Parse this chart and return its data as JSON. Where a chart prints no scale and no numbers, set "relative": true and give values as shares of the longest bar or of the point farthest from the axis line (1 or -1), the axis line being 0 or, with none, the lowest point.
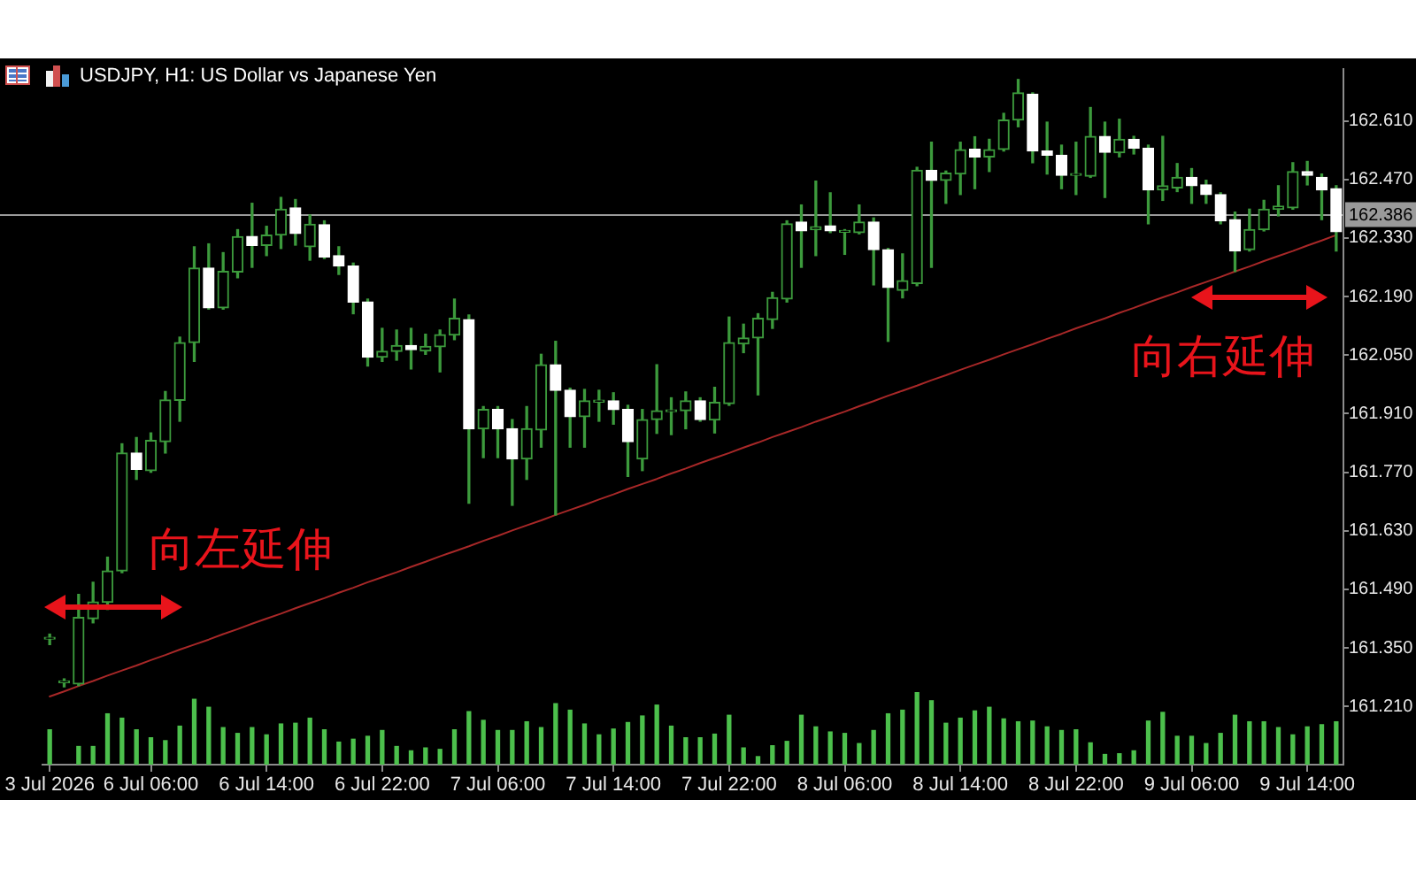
{
  "chart_data": [
    {
      "type": "candlestick",
      "title": "USDJPY, H1: US Dollar vs Japanese Yen",
      "categories": [
        "3 Jul 2026",
        null,
        null,
        null,
        null,
        null,
        null,
        "6 Jul 06:00",
        null,
        null,
        null,
        null,
        null,
        null,
        null,
        "6 Jul 14:00",
        null,
        null,
        null,
        null,
        null,
        null,
        null,
        "6 Jul 22:00",
        null,
        null,
        null,
        null,
        null,
        null,
        null,
        "7 Jul 06:00",
        null,
        null,
        null,
        null,
        null,
        null,
        null,
        "7 Jul 14:00",
        null,
        null,
        null,
        null,
        null,
        null,
        null,
        "7 Jul 22:00",
        null,
        null,
        null,
        null,
        null,
        null,
        null,
        "8 Jul 06:00",
        null,
        null,
        null,
        null,
        null,
        null,
        null,
        "8 Jul 14:00",
        null,
        null,
        null,
        null,
        null,
        null,
        null,
        "8 Jul 22:00",
        null,
        null,
        null,
        null,
        null,
        null,
        null,
        "9 Jul 06:00",
        null,
        null,
        null,
        null,
        null,
        null,
        null,
        "9 Jul 14:00",
        null,
        null
      ],
      "ohlc": [
        [
          161.371,
          161.383,
          161.358,
          161.373
        ],
        [
          161.267,
          161.276,
          161.257,
          161.268
        ],
        [
          161.264,
          161.478,
          161.26,
          161.423
        ],
        [
          161.42,
          161.507,
          161.41,
          161.46
        ],
        [
          161.459,
          161.567,
          161.442,
          161.534
        ],
        [
          161.534,
          161.838,
          161.53,
          161.816
        ],
        [
          161.816,
          161.853,
          161.753,
          161.777
        ],
        [
          161.774,
          161.864,
          161.77,
          161.846
        ],
        [
          161.843,
          161.963,
          161.816,
          161.943
        ],
        [
          161.942,
          162.093,
          161.892,
          162.08
        ],
        [
          162.08,
          162.309,
          162.035,
          162.258
        ],
        [
          162.258,
          162.316,
          162.16,
          162.163
        ],
        [
          162.163,
          162.295,
          162.16,
          162.25
        ],
        [
          162.249,
          162.35,
          162.235,
          162.333
        ],
        [
          162.334,
          162.413,
          162.26,
          162.312
        ],
        [
          162.312,
          162.358,
          162.288,
          162.337
        ],
        [
          162.337,
          162.427,
          162.305,
          162.399
        ],
        [
          162.402,
          162.422,
          162.313,
          162.341
        ],
        [
          162.309,
          162.385,
          162.277,
          162.363
        ],
        [
          162.362,
          162.371,
          162.281,
          162.285
        ],
        [
          162.288,
          162.309,
          162.243,
          162.263
        ],
        [
          162.263,
          162.27,
          162.149,
          162.177
        ],
        [
          162.177,
          162.184,
          162.024,
          162.045
        ],
        [
          162.045,
          162.114,
          162.035,
          162.059
        ],
        [
          162.059,
          162.11,
          162.038,
          162.073
        ],
        [
          162.073,
          162.114,
          162.017,
          162.063
        ],
        [
          162.06,
          162.1,
          162.052,
          162.071
        ],
        [
          162.07,
          162.11,
          162.01,
          162.099
        ],
        [
          162.098,
          162.184,
          162.087,
          162.138
        ],
        [
          162.135,
          162.146,
          161.696,
          161.874
        ],
        [
          161.874,
          161.927,
          161.805,
          161.92
        ],
        [
          161.92,
          161.927,
          161.805,
          161.874
        ],
        [
          161.874,
          161.896,
          161.691,
          161.802
        ],
        [
          161.802,
          161.927,
          161.753,
          161.874
        ],
        [
          161.871,
          162.052,
          161.83,
          162.027
        ],
        [
          162.027,
          162.083,
          161.668,
          161.966
        ],
        [
          161.966,
          161.971,
          161.83,
          161.903
        ],
        [
          161.903,
          161.968,
          161.83,
          161.941
        ],
        [
          161.938,
          161.966,
          161.892,
          161.94
        ],
        [
          161.941,
          161.96,
          161.885,
          161.92
        ],
        [
          161.92,
          161.93,
          161.76,
          161.843
        ],
        [
          161.802,
          161.92,
          161.774,
          161.896
        ],
        [
          161.896,
          162.027,
          161.863,
          161.917
        ],
        [
          161.915,
          161.948,
          161.86,
          161.917
        ],
        [
          161.917,
          161.962,
          161.874,
          161.941
        ],
        [
          161.941,
          161.948,
          161.892,
          161.896
        ],
        [
          161.895,
          161.973,
          161.864,
          161.937
        ],
        [
          161.934,
          162.141,
          161.93,
          162.08
        ],
        [
          162.077,
          162.124,
          162.056,
          162.091
        ],
        [
          162.091,
          162.149,
          161.955,
          162.138
        ],
        [
          162.135,
          162.2,
          162.114,
          162.187
        ],
        [
          162.184,
          162.371,
          162.177,
          162.364
        ],
        [
          162.368,
          162.409,
          162.26,
          162.347
        ],
        [
          162.35,
          162.466,
          162.288,
          162.357
        ],
        [
          162.359,
          162.438,
          162.343,
          162.347
        ],
        [
          162.344,
          162.35,
          162.291,
          162.347
        ],
        [
          162.343,
          162.409,
          162.34,
          162.368
        ],
        [
          162.368,
          162.378,
          162.218,
          162.302
        ],
        [
          162.302,
          162.305,
          162.083,
          162.212
        ],
        [
          162.205,
          162.292,
          162.187,
          162.228
        ],
        [
          162.221,
          162.499,
          162.216,
          162.492
        ],
        [
          162.492,
          162.559,
          162.26,
          162.468
        ],
        [
          162.468,
          162.49,
          162.413,
          162.485
        ],
        [
          162.483,
          162.559,
          162.434,
          162.541
        ],
        [
          162.542,
          162.572,
          162.448,
          162.524
        ],
        [
          162.524,
          162.566,
          162.489,
          162.541
        ],
        [
          162.542,
          162.628,
          162.538,
          162.612
        ],
        [
          162.612,
          162.709,
          162.596,
          162.677
        ],
        [
          162.674,
          162.677,
          162.51,
          162.538
        ],
        [
          162.538,
          162.607,
          162.483,
          162.528
        ],
        [
          162.528,
          162.552,
          162.448,
          162.48
        ],
        [
          162.48,
          162.559,
          162.434,
          162.483
        ],
        [
          162.478,
          162.642,
          162.475,
          162.573
        ],
        [
          162.573,
          162.607,
          162.427,
          162.535
        ],
        [
          162.534,
          162.614,
          162.524,
          162.566
        ],
        [
          162.566,
          162.573,
          162.531,
          162.545
        ],
        [
          162.545,
          162.552,
          162.364,
          162.445
        ],
        [
          162.445,
          162.573,
          162.42,
          162.455
        ],
        [
          162.45,
          162.508,
          162.441,
          162.475
        ],
        [
          162.475,
          162.496,
          162.413,
          162.455
        ],
        [
          162.457,
          162.468,
          162.413,
          162.434
        ],
        [
          162.434,
          162.438,
          162.364,
          162.371
        ],
        [
          162.374,
          162.392,
          162.25,
          162.299
        ],
        [
          162.302,
          162.399,
          162.299,
          162.35
        ],
        [
          162.35,
          162.42,
          162.347,
          162.399
        ],
        [
          162.399,
          162.455,
          162.383,
          162.406
        ],
        [
          162.402,
          162.51,
          162.399,
          162.489
        ],
        [
          162.489,
          162.513,
          162.457,
          162.48
        ],
        [
          162.475,
          162.483,
          162.374,
          162.445
        ],
        [
          162.448,
          162.455,
          162.299,
          162.345
        ]
      ],
      "color": "#3c9a3c",
      "colors": [
        "#3c9a3c",
        "#3c9a3c",
        "#3c9a3c",
        "#3c9a3c",
        "#3c9a3c",
        "#3c9a3c",
        "#ffffff",
        "#3c9a3c",
        "#3c9a3c",
        "#3c9a3c",
        "#3c9a3c",
        "#ffffff",
        "#3c9a3c",
        "#3c9a3c",
        "#ffffff",
        "#3c9a3c",
        "#3c9a3c",
        "#ffffff",
        "#3c9a3c",
        "#ffffff",
        "#ffffff",
        "#ffffff",
        "#ffffff",
        "#3c9a3c",
        "#3c9a3c",
        "#ffffff",
        "#3c9a3c",
        "#3c9a3c",
        "#3c9a3c",
        "#ffffff",
        "#3c9a3c",
        "#ffffff",
        "#ffffff",
        "#3c9a3c",
        "#3c9a3c",
        "#ffffff",
        "#ffffff",
        "#3c9a3c",
        "#3c9a3c",
        "#ffffff",
        "#ffffff",
        "#3c9a3c",
        "#3c9a3c",
        "#3c9a3c",
        "#3c9a3c",
        "#ffffff",
        "#3c9a3c",
        "#3c9a3c",
        "#3c9a3c",
        "#3c9a3c",
        "#3c9a3c",
        "#3c9a3c",
        "#ffffff",
        "#3c9a3c",
        "#ffffff",
        "#3c9a3c",
        "#3c9a3c",
        "#ffffff",
        "#ffffff",
        "#3c9a3c",
        "#3c9a3c",
        "#ffffff",
        "#3c9a3c",
        "#3c9a3c",
        "#ffffff",
        "#3c9a3c",
        "#3c9a3c",
        "#3c9a3c",
        "#ffffff",
        "#ffffff",
        "#ffffff",
        "#3c9a3c",
        "#3c9a3c",
        "#ffffff",
        "#3c9a3c",
        "#ffffff",
        "#ffffff",
        "#3c9a3c",
        "#3c9a3c",
        "#ffffff",
        "#ffffff",
        "#ffffff",
        "#ffffff",
        "#3c9a3c",
        "#3c9a3c",
        "#3c9a3c",
        "#3c9a3c",
        "#ffffff",
        "#ffffff",
        "#ffffff"
      ],
      "series": [
        {
          "type": "line",
          "color": "#a82828",
          "values": [
            161.234,
            161.246,
            161.259,
            161.271,
            161.284,
            161.296,
            161.308,
            161.321,
            161.333,
            161.346,
            161.358,
            161.37,
            161.383,
            161.395,
            161.408,
            161.42,
            161.432,
            161.445,
            161.457,
            161.469,
            161.482,
            161.494,
            161.507,
            161.519,
            161.531,
            161.544,
            161.556,
            161.569,
            161.581,
            161.593,
            161.606,
            161.618,
            161.631,
            161.643,
            161.655,
            161.668,
            161.68,
            161.692,
            161.705,
            161.717,
            161.73,
            161.742,
            161.754,
            161.767,
            161.779,
            161.792,
            161.804,
            161.816,
            161.829,
            161.841,
            161.854,
            161.866,
            161.878,
            161.891,
            161.903,
            161.915,
            161.928,
            161.94,
            161.953,
            161.965,
            161.977,
            161.99,
            162.002,
            162.015,
            162.027,
            162.039,
            162.052,
            162.064,
            162.076,
            162.089,
            162.101,
            162.114,
            162.126,
            162.138,
            162.151,
            162.163,
            162.176,
            162.188,
            162.2,
            162.213,
            162.225,
            162.237,
            162.25,
            162.262,
            162.275,
            162.287,
            162.299,
            162.312,
            162.324,
            162.337
          ]
        }
      ],
      "ylim": [
        161.071,
        162.734
      ],
      "yticks": [
        {
          "value": 161.21,
          "label": "161.210"
        },
        {
          "value": 161.35,
          "label": "161.350"
        },
        {
          "value": 161.49,
          "label": "161.490"
        },
        {
          "value": 161.63,
          "label": "161.630"
        },
        {
          "value": 161.77,
          "label": "161.770"
        },
        {
          "value": 161.91,
          "label": "161.910"
        },
        {
          "value": 162.05,
          "label": "162.050"
        },
        {
          "value": 162.19,
          "label": "162.190"
        },
        {
          "value": 162.33,
          "label": "162.330"
        },
        {
          "value": 162.47,
          "label": "162.470"
        },
        {
          "value": 162.61,
          "label": "162.610"
        }
      ],
      "ref_lines": [
        {
          "axis": "y",
          "value": 162.386,
          "label": "162.386",
          "color": "#9a9a9a"
        }
      ],
      "annotations": [
        "向左延伸",
        "向右延伸"
      ]
    },
    {
      "type": "bar",
      "relative": true,
      "color": "#4cc04c",
      "categories": [
        null,
        null,
        null,
        null,
        null,
        null,
        null,
        null,
        null,
        null,
        null,
        null,
        null,
        null,
        null,
        null,
        null,
        null,
        null,
        null,
        null,
        null,
        null,
        null,
        null,
        null,
        null,
        null,
        null,
        null,
        null,
        null,
        null,
        null,
        null,
        null,
        null,
        null,
        null,
        null,
        null,
        null,
        null,
        null,
        null,
        null,
        null,
        null,
        null,
        null,
        null,
        null,
        null,
        null,
        null,
        null,
        null,
        null,
        null,
        null,
        null,
        null,
        null,
        null,
        null,
        null,
        null,
        null,
        null,
        null,
        null,
        null,
        null,
        null,
        null,
        null,
        null,
        null,
        null,
        null,
        null,
        null,
        null,
        null,
        null,
        null,
        null,
        null,
        null,
        null
      ],
      "values": [
        0.48,
        null,
        0.25,
        0.25,
        0.7,
        0.64,
        0.48,
        0.37,
        0.33,
        0.53,
        0.9,
        0.79,
        0.51,
        0.43,
        0.51,
        0.41,
        0.56,
        0.57,
        0.64,
        0.48,
        0.31,
        0.35,
        0.39,
        0.47,
        0.25,
        0.19,
        0.23,
        0.21,
        0.48,
        0.73,
        0.61,
        0.47,
        0.47,
        0.59,
        0.51,
        0.84,
        0.75,
        0.56,
        0.41,
        0.49,
        0.58,
        0.67,
        0.82,
        0.53,
        0.37,
        0.37,
        0.42,
        0.68,
        0.23,
        0.11,
        0.26,
        0.32,
        0.68,
        0.52,
        0.45,
        0.43,
        0.29,
        0.47,
        0.7,
        0.75,
        1,
        0.88,
        0.57,
        0.64,
        0.74,
        0.79,
        0.63,
        0.59,
        0.6,
        0.52,
        0.47,
        0.48,
        0.3,
        0.14,
        0.15,
        0.19,
        0.6,
        0.72,
        0.39,
        0.39,
        0.29,
        0.43,
        0.68,
        0.59,
        0.59,
        0.51,
        0.41,
        0.52,
        0.55,
        0.59
      ]
    }
  ]
}
